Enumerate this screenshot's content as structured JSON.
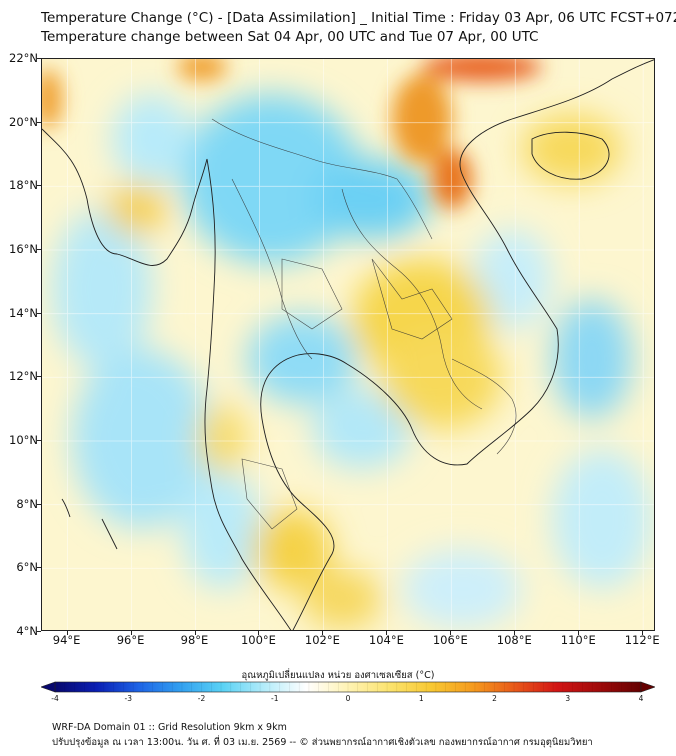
{
  "header": {
    "title_line1": "Temperature Change (°C) - [Data Assimilation] _ Initial Time : Friday 03 Apr, 06 UTC FCST+072",
    "title_line2": "Temperature change between Sat 04 Apr, 00 UTC and Tue 07 Apr, 00 UTC"
  },
  "map": {
    "lat_labels": [
      "22°N",
      "20°N",
      "18°N",
      "16°N",
      "14°N",
      "12°N",
      "10°N",
      "8°N",
      "6°N",
      "4°N"
    ],
    "lon_labels": [
      "94°E",
      "96°E",
      "98°E",
      "100°E",
      "102°E",
      "104°E",
      "106°E",
      "108°E",
      "110°E",
      "112°E"
    ],
    "lat_range": [
      4,
      22
    ],
    "lon_range": [
      93.2,
      112.4
    ],
    "gridlines": true
  },
  "colorbar": {
    "title": "อุณหภูมิเปลี่ยนแปลง หน่วย องศาเซลเซียส (°C)",
    "tick_labels": [
      "-4",
      "-3",
      "-2",
      "-1",
      "0",
      "1",
      "2",
      "3",
      "4"
    ],
    "range": [
      -4,
      4
    ],
    "colors": [
      "#08086e",
      "#0a1fb4",
      "#1e64e6",
      "#32a0f0",
      "#5ad2f5",
      "#b4ecfa",
      "#ffffff",
      "#fff3b4",
      "#fbe36e",
      "#f8c832",
      "#f59a1e",
      "#e8581a",
      "#d21414",
      "#a00a0a",
      "#640000"
    ]
  },
  "footer": {
    "line1": "WRF-DA Domain 01 :: Grid Resolution 9km x 9km",
    "line2": "ปรับปรุงข้อมูล ณ เวลา 13:00น. วัน ศ. ที่ 03 เม.ย. 2569 -- © ส่วนพยากรณ์อากาศเชิงตัวเลข กองพยากรณ์อากาศ กรมอุตุนิยมวิทยา"
  }
}
